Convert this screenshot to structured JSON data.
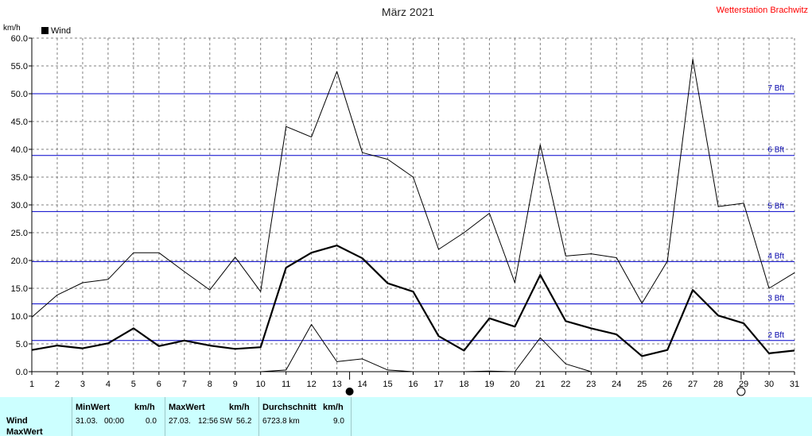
{
  "title": "März 2021",
  "station": "Wetterstation Brachwitz",
  "colors": {
    "station": "#ff0000",
    "beaufort_line": "#0000cc",
    "beaufort_label": "#0000aa",
    "series": "#000000",
    "grid": "#808080",
    "panel_bg": "#ccffff"
  },
  "chart_data": {
    "type": "line",
    "ylabel": "km/h",
    "ylim": [
      0,
      60
    ],
    "y_ticks": [
      "0.0",
      "5.0",
      "10.0",
      "15.0",
      "20.0",
      "25.0",
      "30.0",
      "35.0",
      "40.0",
      "45.0",
      "50.0",
      "55.0",
      "60.0"
    ],
    "x": [
      1,
      2,
      3,
      4,
      5,
      6,
      7,
      8,
      9,
      10,
      11,
      12,
      13,
      14,
      15,
      16,
      17,
      18,
      19,
      20,
      21,
      22,
      23,
      24,
      25,
      26,
      27,
      28,
      29,
      30,
      31
    ],
    "x_ticks": [
      "1",
      "2",
      "3",
      "4",
      "5",
      "6",
      "7",
      "8",
      "9",
      "10",
      "11",
      "12",
      "13",
      "14",
      "15",
      "16",
      "17",
      "18",
      "19",
      "20",
      "21",
      "22",
      "23",
      "24",
      "25",
      "26",
      "27",
      "28",
      "29",
      "30",
      "31"
    ],
    "grid": true,
    "legend": {
      "position": "top-left",
      "entries": [
        "Wind"
      ]
    },
    "series": [
      {
        "name": "Wind",
        "style": "thick",
        "values": [
          3.9,
          4.7,
          4.2,
          5.1,
          7.8,
          4.6,
          5.6,
          4.7,
          4.1,
          4.4,
          18.7,
          21.4,
          22.7,
          20.4,
          15.9,
          14.4,
          6.4,
          3.8,
          9.6,
          8.1,
          17.4,
          9.1,
          7.8,
          6.7,
          2.8,
          3.9,
          14.7,
          10.1,
          8.7,
          3.3,
          3.8
        ]
      },
      {
        "role": "daily maximum",
        "values": [
          9.8,
          13.8,
          16.0,
          16.6,
          21.4,
          21.4,
          18.0,
          14.7,
          20.6,
          14.4,
          44.1,
          42.2,
          54.0,
          39.4,
          38.2,
          35.0,
          22.0,
          25.0,
          28.5,
          16.0,
          40.8,
          20.8,
          21.2,
          20.5,
          12.3,
          19.9,
          56.2,
          29.7,
          30.3,
          15.0,
          17.8
        ]
      },
      {
        "role": "daily minimum",
        "values": [
          0.0,
          0.0,
          0.0,
          0.0,
          0.0,
          0.0,
          0.0,
          0.0,
          0.0,
          0.0,
          0.3,
          8.5,
          1.8,
          2.3,
          0.3,
          0.0,
          0.0,
          0.0,
          0.1,
          0.0,
          6.1,
          1.4,
          0.0,
          0.0,
          0.0,
          0.0,
          0.0,
          0.0,
          0.0,
          0.0,
          0.0
        ]
      }
    ],
    "beaufort_lines": [
      {
        "label": "2 Bft",
        "value": 5.6
      },
      {
        "label": "3 Bft",
        "value": 12.2
      },
      {
        "label": "4 Bft",
        "value": 19.8
      },
      {
        "label": "5 Bft",
        "value": 28.8
      },
      {
        "label": "6 Bft",
        "value": 38.9
      },
      {
        "label": "7 Bft",
        "value": 50.0
      }
    ],
    "moon_phases": [
      {
        "day": 13.5,
        "phase": "new"
      },
      {
        "day": 28.9,
        "phase": "full"
      }
    ]
  },
  "stats": {
    "row_labels": [
      "Wind",
      "MaxWert"
    ],
    "min": {
      "header": "MinWert",
      "unit": "km/h",
      "date": "31.03.",
      "time": "00:00",
      "value": "0.0"
    },
    "max": {
      "header": "MaxWert",
      "unit": "km/h",
      "date": "27.03.",
      "time": "12:56",
      "dir": "SW",
      "value": "56.2"
    },
    "avg": {
      "header": "Durchschnitt",
      "unit": "km/h",
      "distance": "6723.8 km",
      "value": "9.0"
    }
  }
}
